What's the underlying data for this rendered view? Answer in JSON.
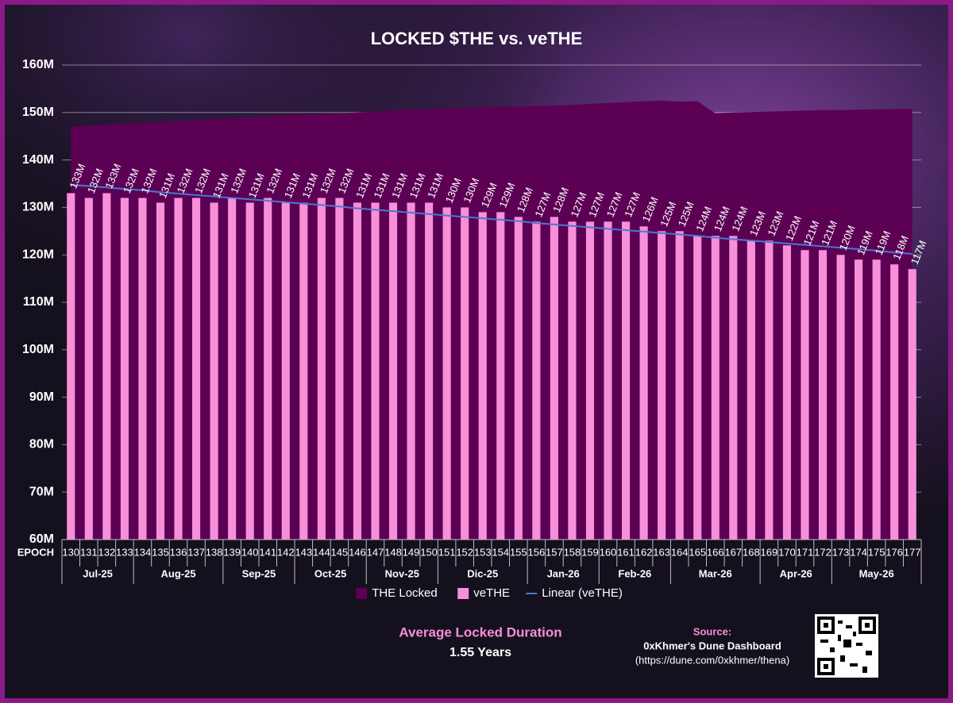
{
  "chart_data": {
    "type": "bar",
    "title": "LOCKED $THE vs. veTHE",
    "x_label": "EPOCH",
    "categories": [
      "130",
      "131",
      "132",
      "133",
      "134",
      "135",
      "136",
      "137",
      "138",
      "139",
      "140",
      "141",
      "142",
      "143",
      "144",
      "145",
      "146",
      "147",
      "148",
      "149",
      "150",
      "151",
      "152",
      "153",
      "154",
      "155",
      "156",
      "157",
      "158",
      "159",
      "160",
      "161",
      "162",
      "163",
      "164",
      "165",
      "166",
      "167",
      "168",
      "169",
      "170",
      "171",
      "172",
      "173",
      "174",
      "175",
      "176",
      "177"
    ],
    "x_groups": [
      "Jul-25",
      "Jul-25",
      "Jul-25",
      "Jul-25",
      "Aug-25",
      "Aug-25",
      "Aug-25",
      "Aug-25",
      "Aug-25",
      "Sep-25",
      "Sep-25",
      "Sep-25",
      "Sep-25",
      "Oct-25",
      "Oct-25",
      "Oct-25",
      "Oct-25",
      "Nov-25",
      "Nov-25",
      "Nov-25",
      "Nov-25",
      "Dic-25",
      "Dic-25",
      "Dic-25",
      "Dic-25",
      "Dic-25",
      "Jan-26",
      "Jan-26",
      "Jan-26",
      "Jan-26",
      "Feb-26",
      "Feb-26",
      "Feb-26",
      "Feb-26",
      "Mar-26",
      "Mar-26",
      "Mar-26",
      "Mar-26",
      "Mar-26",
      "Apr-26",
      "Apr-26",
      "Apr-26",
      "Apr-26",
      "May-26",
      "May-26",
      "May-26",
      "May-26",
      "May-26"
    ],
    "series": [
      {
        "name": "THE Locked",
        "type": "area",
        "color": "#5c0054",
        "values": [
          147.0,
          147.2,
          147.4,
          147.6,
          147.8,
          148.0,
          148.2,
          148.4,
          148.6,
          148.8,
          149.0,
          149.2,
          149.4,
          149.6,
          149.7,
          149.8,
          150.0,
          150.2,
          150.4,
          150.6,
          150.7,
          150.9,
          151.0,
          151.1,
          151.2,
          151.3,
          151.4,
          151.5,
          151.6,
          151.8,
          152.0,
          152.2,
          152.4,
          152.5,
          152.3,
          152.4,
          149.8,
          150.0,
          150.1,
          150.2,
          150.3,
          150.4,
          150.5,
          150.5,
          150.6,
          150.7,
          150.7,
          150.8
        ]
      },
      {
        "name": "veTHE",
        "type": "bar",
        "color": "#f78fd9",
        "values": [
          133,
          132,
          133,
          132,
          132,
          131,
          132,
          132,
          131,
          132,
          131,
          132,
          131,
          131,
          132,
          132,
          131,
          131,
          131,
          131,
          131,
          130,
          130,
          129,
          129,
          128,
          127,
          128,
          127,
          127,
          127,
          127,
          126,
          125,
          125,
          124,
          124,
          124,
          123,
          123,
          122,
          121,
          121,
          120,
          119,
          119,
          118,
          117
        ],
        "value_labels": [
          "133M",
          "132M",
          "133M",
          "132M",
          "132M",
          "131M",
          "132M",
          "132M",
          "131M",
          "132M",
          "131M",
          "132M",
          "131M",
          "131M",
          "132M",
          "132M",
          "131M",
          "131M",
          "131M",
          "131M",
          "131M",
          "130M",
          "130M",
          "129M",
          "129M",
          "128M",
          "127M",
          "128M",
          "127M",
          "127M",
          "127M",
          "127M",
          "126M",
          "125M",
          "125M",
          "124M",
          "124M",
          "124M",
          "123M",
          "123M",
          "122M",
          "121M",
          "121M",
          "120M",
          "119M",
          "119M",
          "118M",
          "117M"
        ]
      },
      {
        "name": "Linear (veTHE)",
        "type": "line",
        "color": "#4a78d0",
        "values": [
          134.8,
          134.5,
          134.2,
          133.9,
          133.6,
          133.2,
          132.9,
          132.6,
          132.3,
          132.0,
          131.7,
          131.4,
          131.1,
          130.8,
          130.5,
          130.2,
          129.8,
          129.5,
          129.2,
          128.9,
          128.6,
          128.3,
          128.0,
          127.7,
          127.4,
          127.1,
          126.7,
          126.4,
          126.1,
          125.8,
          125.5,
          125.2,
          124.9,
          124.6,
          124.3,
          124.0,
          123.6,
          123.3,
          123.0,
          122.7,
          122.4,
          122.1,
          121.8,
          121.5,
          121.2,
          120.9,
          120.5,
          120.2
        ]
      }
    ],
    "ylim": [
      60,
      160
    ],
    "yticks": [
      {
        "value": 60,
        "label": "60M"
      },
      {
        "value": 70,
        "label": "70M"
      },
      {
        "value": 80,
        "label": "80M"
      },
      {
        "value": 90,
        "label": "90M"
      },
      {
        "value": 100,
        "label": "100M"
      },
      {
        "value": 110,
        "label": "110M"
      },
      {
        "value": 120,
        "label": "120M"
      },
      {
        "value": 130,
        "label": "130M"
      },
      {
        "value": 140,
        "label": "140M"
      },
      {
        "value": 150,
        "label": "150M"
      },
      {
        "value": 160,
        "label": "160M"
      }
    ],
    "grid": true,
    "legend": "bottom"
  },
  "annotations": {
    "duration_title": "Average Locked Duration",
    "duration_value": "1.55 Years",
    "source_title": "Source:",
    "source_name": "0xKhmer's Dune Dashboard",
    "source_url": "(https://dune.com/0xkhmer/thena)"
  }
}
